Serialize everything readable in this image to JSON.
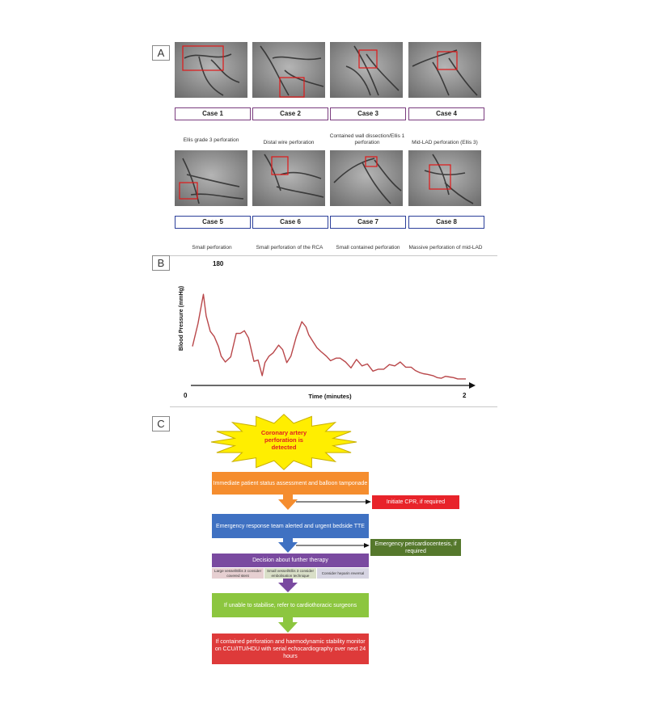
{
  "panels": {
    "a": "A",
    "b": "B",
    "c": "C"
  },
  "cases": [
    {
      "label": "Case 1",
      "top_caption": "",
      "bottom_caption": ""
    },
    {
      "label": "Case 2",
      "top_caption": "",
      "bottom_caption": ""
    },
    {
      "label": "Case 3",
      "top_caption": "",
      "bottom_caption": ""
    },
    {
      "label": "Case 4",
      "top_caption": "",
      "bottom_caption": ""
    },
    {
      "label": "Case 5",
      "top_caption": "Ellis grade 3 perforation",
      "bottom_caption": "Small perforation"
    },
    {
      "label": "Case 6",
      "top_caption": "Distal wire perforation",
      "bottom_caption": "Small perforation of the RCA"
    },
    {
      "label": "Case 7",
      "top_caption": "Contained wall dissection/Ellis 1 perforation",
      "bottom_caption": "Small contained perforation"
    },
    {
      "label": "Case 8",
      "top_caption": "Mid-LAD perforation (Ellis 3)",
      "bottom_caption": "Massive perforation of mid-LAD"
    }
  ],
  "chart_data": {
    "type": "line",
    "title": "",
    "xlabel": "Time (minutes)",
    "ylabel": "Blood Pressure (mmHg)",
    "x_tick_labels": [
      "0",
      "2"
    ],
    "y_tick_labels": [
      "180"
    ],
    "xlim": [
      0,
      2
    ],
    "ylim": [
      0,
      180
    ],
    "grid": false,
    "line_color": "#b9474a",
    "series": [
      {
        "name": "",
        "x": [
          0.0,
          0.04,
          0.08,
          0.1,
          0.13,
          0.16,
          0.19,
          0.21,
          0.24,
          0.28,
          0.32,
          0.35,
          0.38,
          0.41,
          0.45,
          0.48,
          0.51,
          0.53,
          0.56,
          0.59,
          0.63,
          0.66,
          0.69,
          0.72,
          0.76,
          0.8,
          0.83,
          0.85,
          0.88,
          0.91,
          0.94,
          0.98,
          1.01,
          1.05,
          1.08,
          1.12,
          1.16,
          1.2,
          1.24,
          1.28,
          1.32,
          1.36,
          1.4,
          1.44,
          1.48,
          1.52,
          1.56,
          1.6,
          1.63,
          1.66,
          1.69,
          1.72,
          1.76,
          1.79,
          1.82,
          1.85,
          1.88,
          1.91,
          1.94,
          1.97,
          2.0
        ],
        "y": [
          60,
          95,
          140,
          107,
          83,
          75,
          60,
          45,
          36,
          44,
          80,
          80,
          84,
          73,
          37,
          39,
          15,
          35,
          45,
          50,
          62,
          55,
          35,
          45,
          75,
          98,
          90,
          78,
          68,
          58,
          52,
          45,
          38,
          42,
          42,
          36,
          27,
          40,
          30,
          33,
          22,
          25,
          25,
          32,
          30,
          36,
          28,
          28,
          23,
          20,
          18,
          17,
          15,
          12,
          11,
          14,
          13,
          12,
          10,
          10,
          10
        ]
      }
    ]
  },
  "flowchart": {
    "start": "Coronary artery perforation is detected",
    "step1": "Immediate patient status assessment and balloon tamponade",
    "side1": "Initiate CPR, if required",
    "step2": "Emergency response team alerted and urgent bedside TTE",
    "side2": "Emergency pericardiocentesis, if required",
    "step3": "Decision about further therapy",
    "options": [
      "Large vessel/Ellis 3 consider covered stent",
      "Small vessel/Ellis 3 consider embolisation technique",
      "Consider heparin reversal"
    ],
    "step4": "If unable to stabilise, refer to cardiothoracic surgeons",
    "step5": "If contained perforation and haemodynamic stability monitor on CCU/ITU/HDU with serial echocardiography over next 24 hours",
    "colors": {
      "start_fill": "#ffee00",
      "start_text": "#e02020",
      "step1": "#f58d2e",
      "side1": "#e8232a",
      "step2": "#3f71c2",
      "side2": "#55782c",
      "step3": "#7a4aa0",
      "opt1": "#e6cfd1",
      "opt2": "#d9dfc8",
      "opt3": "#d6d4e2",
      "step4": "#8cc63f",
      "step5": "#de3a3a"
    }
  }
}
